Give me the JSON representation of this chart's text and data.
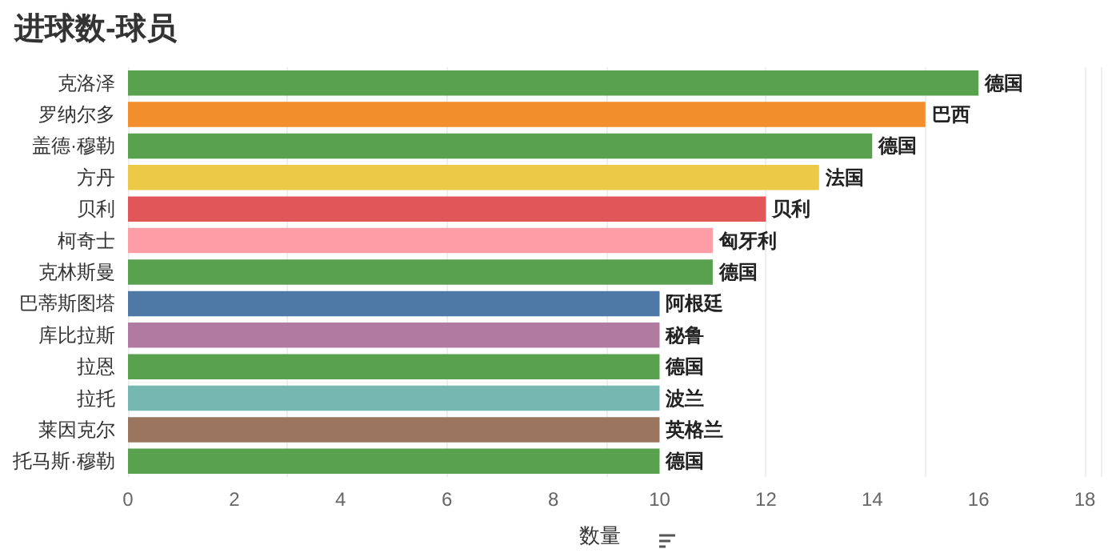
{
  "chart_data": {
    "type": "bar",
    "orientation": "horizontal",
    "title": "进球数-球员",
    "xlabel": "数量",
    "categories": [
      "克洛泽",
      "罗纳尔多",
      "盖德·穆勒",
      "方丹",
      "贝利",
      "柯奇士",
      "克林斯曼",
      "巴蒂斯图塔",
      "库比拉斯",
      "拉恩",
      "拉托",
      "莱因克尔",
      "托马斯·穆勒"
    ],
    "values": [
      16,
      15,
      14,
      13,
      12,
      11,
      11,
      10,
      10,
      10,
      10,
      10,
      10
    ],
    "colors": [
      "#59a14f",
      "#f28e2b",
      "#59a14f",
      "#edc948",
      "#e15759",
      "#ff9da7",
      "#59a14f",
      "#4e79a7",
      "#b07aa1",
      "#59a14f",
      "#76b7b2",
      "#9c755f",
      "#59a14f"
    ],
    "annotations": [
      {
        "text": "德国",
        "x": 16,
        "y": "克洛泽"
      },
      {
        "text": "巴西",
        "x": 15,
        "y": "罗纳尔多"
      },
      {
        "text": "德国",
        "x": 14,
        "y": "盖德·穆勒"
      },
      {
        "text": "法国",
        "x": 13,
        "y": "方丹"
      },
      {
        "text": "贝利",
        "x": 12,
        "y": "贝利"
      },
      {
        "text": "匈牙利",
        "x": 11,
        "y": "柯奇士"
      },
      {
        "text": "德国",
        "x": 11,
        "y": "克林斯曼"
      },
      {
        "text": "阿根廷",
        "x": 10,
        "y": "巴蒂斯图塔"
      },
      {
        "text": "秘鲁",
        "x": 10,
        "y": "库比拉斯"
      },
      {
        "text": "德国",
        "x": 10,
        "y": "拉恩"
      },
      {
        "text": "波兰",
        "x": 10,
        "y": "拉托"
      },
      {
        "text": "英格兰",
        "x": 10,
        "y": "莱因克尔"
      },
      {
        "text": "德国",
        "x": 10,
        "y": "托马斯·穆勒"
      }
    ],
    "xlim": [
      0,
      18.3
    ],
    "xticks": [
      0,
      2,
      4,
      6,
      8,
      10,
      12,
      14,
      16,
      18
    ],
    "grid": "x"
  }
}
